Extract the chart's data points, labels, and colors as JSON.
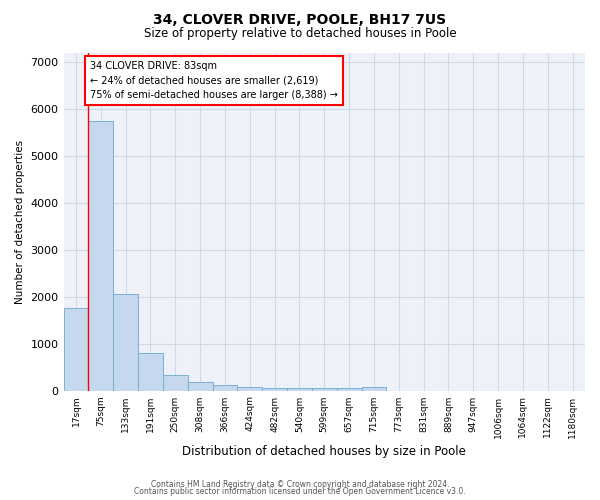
{
  "title1": "34, CLOVER DRIVE, POOLE, BH17 7US",
  "title2": "Size of property relative to detached houses in Poole",
  "xlabel": "Distribution of detached houses by size in Poole",
  "ylabel": "Number of detached properties",
  "categories": [
    "17sqm",
    "75sqm",
    "133sqm",
    "191sqm",
    "250sqm",
    "308sqm",
    "366sqm",
    "424sqm",
    "482sqm",
    "540sqm",
    "599sqm",
    "657sqm",
    "715sqm",
    "773sqm",
    "831sqm",
    "889sqm",
    "947sqm",
    "1006sqm",
    "1064sqm",
    "1122sqm",
    "1180sqm"
  ],
  "values": [
    1750,
    5750,
    2050,
    800,
    340,
    190,
    110,
    75,
    60,
    55,
    50,
    45,
    80,
    0,
    0,
    0,
    0,
    0,
    0,
    0,
    0
  ],
  "bar_color": "#c5d8ed",
  "bar_edge_color": "#7aafd4",
  "grid_color": "#d0d8e8",
  "annotation_text": "34 CLOVER DRIVE: 83sqm\n← 24% of detached houses are smaller (2,619)\n75% of semi-detached houses are larger (8,388) →",
  "annotation_box_color": "white",
  "annotation_box_edge_color": "red",
  "red_line_x": 0.5,
  "ylim": [
    0,
    7200
  ],
  "yticks": [
    0,
    1000,
    2000,
    3000,
    4000,
    5000,
    6000,
    7000
  ],
  "footer1": "Contains HM Land Registry data © Crown copyright and database right 2024.",
  "footer2": "Contains public sector information licensed under the Open Government Licence v3.0.",
  "bg_color": "#eef2f8"
}
